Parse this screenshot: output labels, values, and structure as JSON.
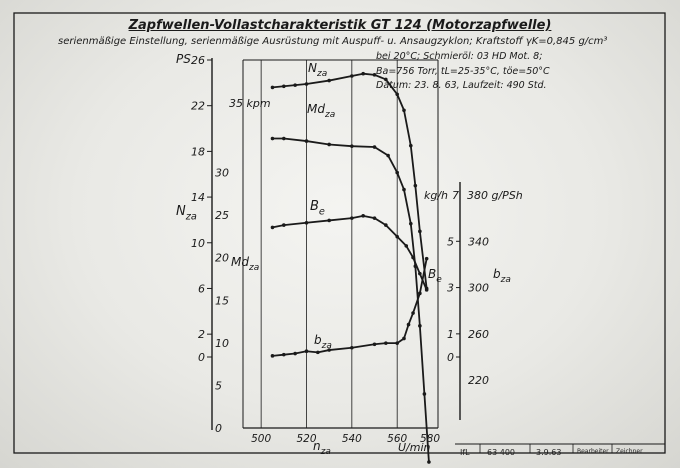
{
  "header": {
    "title": "Zapfwellen-Vollastcharakteristik GT 124 (Motorzapfwelle)",
    "subtitle": "serienmäßige Einstellung, serienmäßige Ausrüstung mit Auspuff- u. Ansaugzyklon; Kraftstoff γK=0,845 g/cm³",
    "meta": [
      "bei 20°C; Schmieröl: 03 HD Mot. 8;",
      "Ba=756 Torr, tL=25-35°C, töe=50°C",
      "Datum: 23. 8. 63, Laufzeit: 490 Std."
    ]
  },
  "axes": {
    "ps_label": "PS",
    "ps_ticks": [
      "26",
      "22",
      "18",
      "14",
      "10",
      "6",
      "2",
      "0"
    ],
    "kpm_unit": "35 kpm",
    "kpm_ticks": [
      "30",
      "25",
      "20",
      "15",
      "10",
      "5",
      "0"
    ],
    "n_label": "N",
    "n_sub": "za",
    "md_label": "Md",
    "md_sub": "za",
    "kgh_unit": "kg/h",
    "kgh_top": "7",
    "kgh_ticks": [
      "5",
      "3",
      "1",
      "0"
    ],
    "gps_unit": "380 g/PSh",
    "gps_ticks": [
      "340",
      "300",
      "260",
      "220"
    ],
    "b_label": "b",
    "b_sub": "za",
    "x_ticks": [
      "500",
      "520",
      "540",
      "560",
      "580"
    ],
    "x_label": "n",
    "x_sub": "za",
    "x_unit": "U/min"
  },
  "curve_labels": {
    "nza": "N",
    "nza_sub": "za",
    "mdza": "Md",
    "mdza_sub": "za",
    "be_top": "B",
    "be_top_sub": "e",
    "be_side": "B",
    "be_side_sub": "e",
    "bza": "b",
    "bza_sub": "za"
  },
  "footer": {
    "institute": "IfL",
    "number": "63 400",
    "date": "3.9.63",
    "c1": "Bearbeiter",
    "c2": "Zeichner"
  },
  "chart_data": {
    "type": "line",
    "title": "Zapfwellen-Vollastcharakteristik GT 124 (Motorzapfwelle)",
    "xlabel": "n_za U/min",
    "xlim": [
      492,
      578
    ],
    "series": [
      {
        "name": "N_za",
        "unit": "PS",
        "x": [
          505,
          510,
          515,
          520,
          530,
          540,
          545,
          550,
          555,
          560,
          563,
          566,
          568,
          570,
          573
        ],
        "y": [
          23.6,
          23.7,
          23.8,
          23.9,
          24.2,
          24.6,
          24.8,
          24.7,
          24.3,
          23.0,
          21.6,
          18.5,
          15.0,
          11.0,
          6.0
        ]
      },
      {
        "name": "Md_za",
        "unit": "kpm",
        "x": [
          505,
          510,
          520,
          530,
          540,
          550,
          556,
          560,
          563,
          566,
          568,
          570,
          572,
          574
        ],
        "y": [
          34.0,
          34.0,
          33.7,
          33.3,
          33.1,
          33.0,
          32.0,
          30.0,
          28.0,
          24.0,
          19.0,
          12.0,
          4.0,
          -4.0
        ]
      },
      {
        "name": "B_e",
        "unit": "kg/h",
        "x": [
          505,
          510,
          520,
          530,
          540,
          545,
          550,
          555,
          560,
          564,
          567,
          570,
          573
        ],
        "y": [
          5.6,
          5.7,
          5.8,
          5.9,
          6.0,
          6.1,
          6.0,
          5.7,
          5.2,
          4.8,
          4.3,
          3.6,
          2.9
        ]
      },
      {
        "name": "b_za",
        "unit": "g/PSh",
        "x": [
          505,
          510,
          515,
          520,
          525,
          530,
          540,
          550,
          555,
          560,
          563,
          565,
          567,
          570,
          573
        ],
        "y": [
          241,
          242,
          243,
          245,
          244,
          246,
          248,
          251,
          252,
          252,
          256,
          268,
          278,
          295,
          325
        ]
      }
    ]
  }
}
